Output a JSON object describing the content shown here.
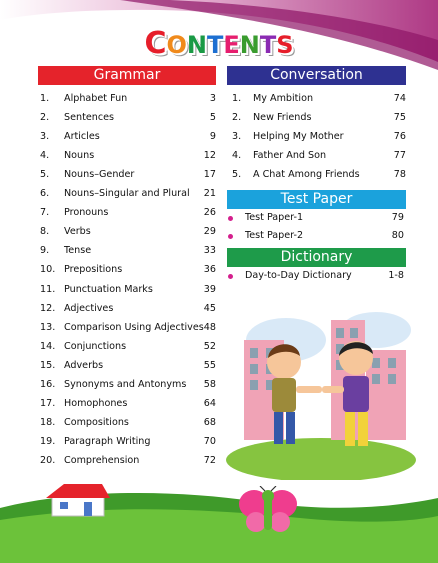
{
  "title": {
    "letters": [
      "C",
      "O",
      "N",
      "T",
      "E",
      "N",
      "T",
      "S"
    ],
    "colors": [
      "#e61e2a",
      "#f08a1b",
      "#1a9a45",
      "#1d6fd1",
      "#e61e6e",
      "#3a9c2f",
      "#8b2bb3",
      "#e61e2a"
    ]
  },
  "grammar": {
    "header": "Grammar",
    "items": [
      {
        "num": "1.",
        "label": "Alphabet Fun",
        "page": "3"
      },
      {
        "num": "2.",
        "label": "Sentences",
        "page": "5"
      },
      {
        "num": "3.",
        "label": "Articles",
        "page": "9"
      },
      {
        "num": "4.",
        "label": "Nouns",
        "page": "12"
      },
      {
        "num": "5.",
        "label": "Nouns–Gender",
        "page": "17"
      },
      {
        "num": "6.",
        "label": "Nouns–Singular and Plural",
        "page": "21"
      },
      {
        "num": "7.",
        "label": "Pronouns",
        "page": "26"
      },
      {
        "num": "8.",
        "label": "Verbs",
        "page": "29"
      },
      {
        "num": "9.",
        "label": "Tense",
        "page": "33"
      },
      {
        "num": "10.",
        "label": "Prepositions",
        "page": "36"
      },
      {
        "num": "11.",
        "label": "Punctuation Marks",
        "page": "39"
      },
      {
        "num": "12.",
        "label": "Adjectives",
        "page": "45"
      },
      {
        "num": "13.",
        "label": "Comparison Using Adjectives",
        "page": "48"
      },
      {
        "num": "14.",
        "label": "Conjunctions",
        "page": "52"
      },
      {
        "num": "15.",
        "label": "Adverbs",
        "page": "55"
      },
      {
        "num": "16.",
        "label": "Synonyms and Antonyms",
        "page": "58"
      },
      {
        "num": "17.",
        "label": "Homophones",
        "page": "64"
      },
      {
        "num": "18.",
        "label": "Compositions",
        "page": "68"
      },
      {
        "num": "19.",
        "label": "Paragraph Writing",
        "page": "70"
      },
      {
        "num": "20.",
        "label": "Comprehension",
        "page": "72"
      }
    ]
  },
  "conversation": {
    "header": "Conversation",
    "items": [
      {
        "num": "1.",
        "label": "My Ambition",
        "page": "74"
      },
      {
        "num": "2.",
        "label": "New Friends",
        "page": "75"
      },
      {
        "num": "3.",
        "label": "Helping My Mother",
        "page": "76"
      },
      {
        "num": "4.",
        "label": "Father And Son",
        "page": "77"
      },
      {
        "num": "5.",
        "label": "A Chat Among Friends",
        "page": "78"
      }
    ]
  },
  "test_paper": {
    "header": "Test Paper",
    "items": [
      {
        "label": "Test Paper-1",
        "page": "79"
      },
      {
        "label": "Test Paper-2",
        "page": "80"
      }
    ]
  },
  "dictionary": {
    "header": "Dictionary",
    "items": [
      {
        "label": "Day-to-Day Dictionary",
        "page": "1-8"
      }
    ]
  },
  "colors": {
    "grammar_header": "#e5232b",
    "conversation_header": "#2e3191",
    "test_paper_header": "#1ba2dc",
    "dictionary_header": "#1e9b4a",
    "bullet": "#d41f8d",
    "swoosh": "#b0207c",
    "grass": "#5ab52f"
  },
  "icons": [
    "house-illustration",
    "butterfly-illustration",
    "two-boys-illustration"
  ]
}
